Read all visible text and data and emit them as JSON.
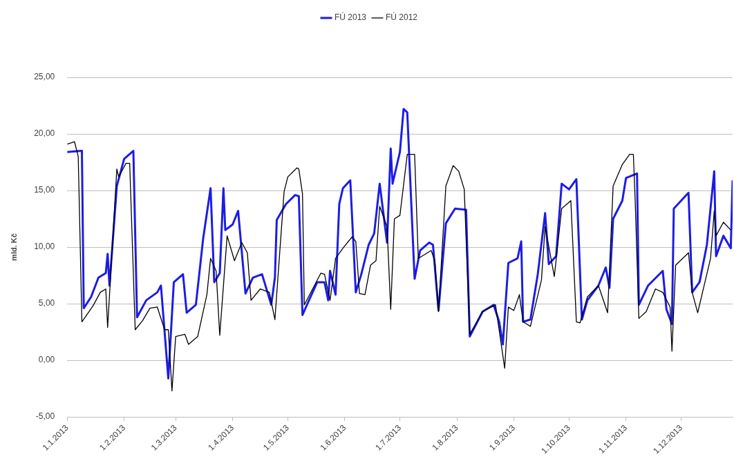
{
  "chart_data": {
    "type": "line",
    "ylabel": "mld. Kč",
    "legend": "top",
    "grid": "y",
    "marker": "none",
    "line_style": "solid",
    "ylim": [
      -5,
      25
    ],
    "yticks": [
      {
        "value": -5,
        "label": "-5,00"
      },
      {
        "value": 0,
        "label": "0,00"
      },
      {
        "value": 5,
        "label": "5,00"
      },
      {
        "value": 10,
        "label": "10,00"
      },
      {
        "value": 15,
        "label": "15,00"
      },
      {
        "value": 20,
        "label": "20,00"
      },
      {
        "value": 25,
        "label": "25,00"
      }
    ],
    "xlim": [
      "2013-01-01",
      "2013-12-29"
    ],
    "xticks": [
      {
        "value": "2013-01-01",
        "label": "1.1.2013"
      },
      {
        "value": "2013-02-01",
        "label": "1.2.2013"
      },
      {
        "value": "2013-03-01",
        "label": "1.3.2013"
      },
      {
        "value": "2013-04-01",
        "label": "1.4.2013"
      },
      {
        "value": "2013-05-01",
        "label": "1.5.2013"
      },
      {
        "value": "2013-06-01",
        "label": "1.6.2013"
      },
      {
        "value": "2013-07-01",
        "label": "1.7.2013"
      },
      {
        "value": "2013-08-01",
        "label": "1.8.2013"
      },
      {
        "value": "2013-09-01",
        "label": "1.9.2013"
      },
      {
        "value": "2013-10-01",
        "label": "1.10.2013"
      },
      {
        "value": "2013-11-01",
        "label": "1.11.2013"
      },
      {
        "value": "2013-12-01",
        "label": "1.12.2013"
      }
    ],
    "series": [
      {
        "name": "FÚ 2013",
        "color": "#1c1ce6",
        "x": [
          "2013-01-01",
          "2013-01-09",
          "2013-01-10",
          "2013-01-14",
          "2013-01-18",
          "2013-01-22",
          "2013-01-23",
          "2013-01-24",
          "2013-01-28",
          "2013-02-01",
          "2013-02-06",
          "2013-02-08",
          "2013-02-13",
          "2013-02-19",
          "2013-02-21",
          "2013-02-23",
          "2013-02-25",
          "2013-02-28",
          "2013-03-05",
          "2013-03-07",
          "2013-03-12",
          "2013-03-16",
          "2013-03-20",
          "2013-03-22",
          "2013-03-25",
          "2013-03-27",
          "2013-03-28",
          "2013-04-01",
          "2013-04-04",
          "2013-04-08",
          "2013-04-12",
          "2013-04-17",
          "2013-04-22",
          "2013-04-24",
          "2013-04-25",
          "2013-04-30",
          "2013-05-05",
          "2013-05-07",
          "2013-05-09",
          "2013-05-12",
          "2013-05-17",
          "2013-05-21",
          "2013-05-23",
          "2013-05-24",
          "2013-05-27",
          "2013-05-29",
          "2013-05-31",
          "2013-06-04",
          "2013-06-07",
          "2013-06-10",
          "2013-06-14",
          "2013-06-17",
          "2013-06-20",
          "2013-06-24",
          "2013-06-26",
          "2013-06-27",
          "2013-07-01",
          "2013-07-03",
          "2013-07-05",
          "2013-07-09",
          "2013-07-12",
          "2013-07-17",
          "2013-07-19",
          "2013-07-22",
          "2013-07-26",
          "2013-07-31",
          "2013-08-06",
          "2013-08-08",
          "2013-08-15",
          "2013-08-21",
          "2013-08-24",
          "2013-08-26",
          "2013-08-29",
          "2013-09-03",
          "2013-09-05",
          "2013-09-06",
          "2013-09-10",
          "2013-09-14",
          "2013-09-18",
          "2013-09-20",
          "2013-09-24",
          "2013-09-27",
          "2013-10-01",
          "2013-10-05",
          "2013-10-08",
          "2013-10-11",
          "2013-10-17",
          "2013-10-21",
          "2013-10-23",
          "2013-10-25",
          "2013-10-30",
          "2013-11-01",
          "2013-11-07",
          "2013-11-08",
          "2013-11-13",
          "2013-11-21",
          "2013-11-23",
          "2013-11-26",
          "2013-11-27",
          "2013-12-01",
          "2013-12-05",
          "2013-12-07",
          "2013-12-11",
          "2013-12-15",
          "2013-12-19",
          "2013-12-20",
          "2013-12-24",
          "2013-12-28",
          "2013-12-29"
        ],
        "values": [
          18.4,
          18.5,
          4.6,
          5.6,
          7.3,
          7.7,
          9.4,
          6.6,
          15.4,
          17.8,
          18.5,
          3.8,
          5.3,
          6.0,
          6.6,
          2.5,
          -1.6,
          6.9,
          7.6,
          4.2,
          4.9,
          10.8,
          15.2,
          6.9,
          7.7,
          15.2,
          11.5,
          12.0,
          13.2,
          5.9,
          7.3,
          7.6,
          4.9,
          7.3,
          12.4,
          13.8,
          14.6,
          14.5,
          4.0,
          5.1,
          6.9,
          6.9,
          5.3,
          7.9,
          5.8,
          13.8,
          15.2,
          15.9,
          6.0,
          7.6,
          10.2,
          11.2,
          15.6,
          10.4,
          18.7,
          15.6,
          18.4,
          22.2,
          21.9,
          7.2,
          9.7,
          10.4,
          10.2,
          4.4,
          12.1,
          13.4,
          13.3,
          2.1,
          4.3,
          4.9,
          3.4,
          1.4,
          8.6,
          9.0,
          10.5,
          3.4,
          3.6,
          7.6,
          13.0,
          8.5,
          9.2,
          15.6,
          15.1,
          16.0,
          3.6,
          5.3,
          6.6,
          8.2,
          6.4,
          12.5,
          14.1,
          16.1,
          16.5,
          4.9,
          6.6,
          7.9,
          4.5,
          3.2,
          13.4,
          14.1,
          14.8,
          6.0,
          6.9,
          10.2,
          16.7,
          9.2,
          11.0,
          9.9,
          15.9
        ]
      },
      {
        "name": "FÚ 2012",
        "color": "#000000",
        "x": [
          "2013-01-01",
          "2013-01-05",
          "2013-01-07",
          "2013-01-09",
          "2013-01-15",
          "2013-01-19",
          "2013-01-22",
          "2013-01-23",
          "2013-01-28",
          "2013-01-29",
          "2013-02-02",
          "2013-02-04",
          "2013-02-07",
          "2013-02-11",
          "2013-02-15",
          "2013-02-19",
          "2013-02-23",
          "2013-02-25",
          "2013-02-27",
          "2013-03-01",
          "2013-03-06",
          "2013-03-08",
          "2013-03-13",
          "2013-03-18",
          "2013-03-20",
          "2013-03-23",
          "2013-03-25",
          "2013-03-29",
          "2013-04-02",
          "2013-04-06",
          "2013-04-09",
          "2013-04-11",
          "2013-04-16",
          "2013-04-21",
          "2013-04-24",
          "2013-04-29",
          "2013-05-01",
          "2013-05-06",
          "2013-05-07",
          "2013-05-09",
          "2013-05-10",
          "2013-05-19",
          "2013-05-21",
          "2013-05-24",
          "2013-05-27",
          "2013-05-31",
          "2013-06-05",
          "2013-06-07",
          "2013-06-09",
          "2013-06-12",
          "2013-06-15",
          "2013-06-18",
          "2013-06-20",
          "2013-06-24",
          "2013-06-26",
          "2013-06-28",
          "2013-07-01",
          "2013-07-05",
          "2013-07-09",
          "2013-07-11",
          "2013-07-18",
          "2013-07-20",
          "2013-07-22",
          "2013-07-26",
          "2013-07-30",
          "2013-08-02",
          "2013-08-05",
          "2013-08-08",
          "2013-08-15",
          "2013-08-22",
          "2013-08-27",
          "2013-08-29",
          "2013-09-01",
          "2013-09-04",
          "2013-09-06",
          "2013-09-10",
          "2013-09-16",
          "2013-09-18",
          "2013-09-23",
          "2013-09-27",
          "2013-10-02",
          "2013-10-05",
          "2013-10-07",
          "2013-10-11",
          "2013-10-17",
          "2013-10-22",
          "2013-10-25",
          "2013-10-30",
          "2013-11-03",
          "2013-11-05",
          "2013-11-06",
          "2013-11-08",
          "2013-11-12",
          "2013-11-17",
          "2013-11-21",
          "2013-11-25",
          "2013-11-26",
          "2013-11-28",
          "2013-12-05",
          "2013-12-07",
          "2013-12-10",
          "2013-12-17",
          "2013-12-19",
          "2013-12-20",
          "2013-12-24",
          "2013-12-28"
        ],
        "values": [
          19.1,
          19.3,
          18.0,
          3.4,
          4.8,
          6.0,
          6.3,
          2.9,
          16.9,
          16.2,
          17.4,
          17.4,
          2.7,
          3.5,
          4.6,
          4.7,
          2.7,
          2.7,
          -2.7,
          2.1,
          2.3,
          1.4,
          2.1,
          5.8,
          9.0,
          7.9,
          2.2,
          11.0,
          8.8,
          10.4,
          9.5,
          5.3,
          6.3,
          6.0,
          3.6,
          14.9,
          16.2,
          17.0,
          16.9,
          14.7,
          4.9,
          7.7,
          7.6,
          5.3,
          9.0,
          9.9,
          10.9,
          10.5,
          5.9,
          5.8,
          8.4,
          8.8,
          13.6,
          11.8,
          4.5,
          12.5,
          12.8,
          18.2,
          18.2,
          9.0,
          9.7,
          8.8,
          4.3,
          15.4,
          17.2,
          16.7,
          15.1,
          2.3,
          4.3,
          4.9,
          -0.7,
          4.7,
          4.4,
          5.8,
          3.4,
          3.0,
          7.1,
          11.8,
          7.4,
          13.4,
          14.1,
          3.4,
          3.3,
          5.6,
          6.6,
          4.2,
          15.4,
          17.3,
          18.2,
          18.2,
          14.1,
          3.7,
          4.3,
          6.3,
          6.0,
          4.7,
          0.8,
          8.4,
          9.5,
          6.0,
          4.2,
          9.0,
          13.2,
          11.0,
          12.2,
          11.5
        ]
      }
    ]
  }
}
